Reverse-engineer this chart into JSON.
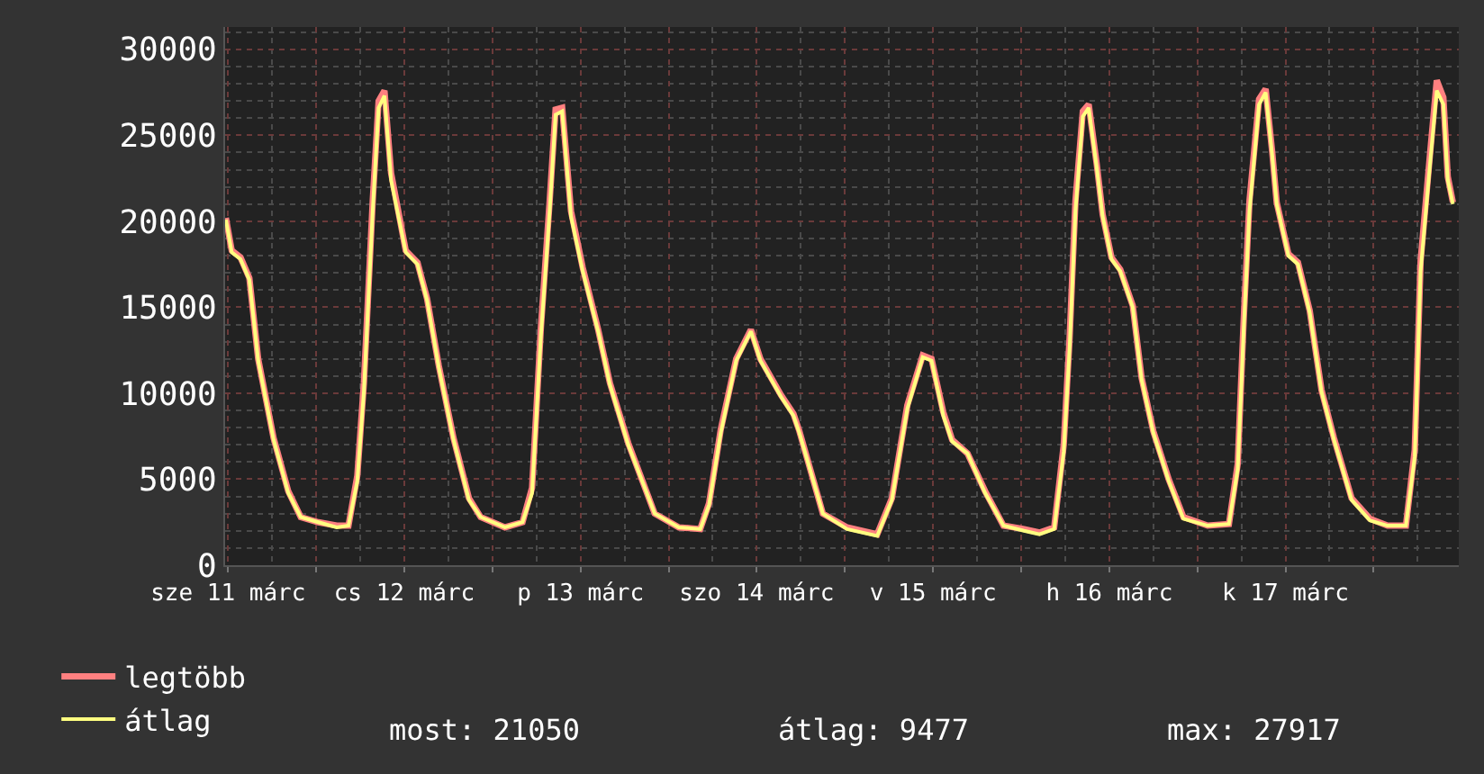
{
  "chart_data": {
    "type": "line",
    "x": [
      "--03-11T11:42",
      "--03-11T12:30",
      "--03-11T13:42",
      "--03-11T14:54",
      "--03-11T16:06",
      "--03-11T18:12",
      "--03-11T20:12",
      "--03-11T21:54",
      "--03-12T00:18",
      "--03-12T02:48",
      "--03-12T04:24",
      "--03-12T05:36",
      "--03-12T06:30",
      "--03-12T07:42",
      "--03-12T08:30",
      "--03-12T09:18",
      "--03-12T10:12",
      "--03-12T12:12",
      "--03-12T13:48",
      "--03-12T15:06",
      "--03-12T16:42",
      "--03-12T18:42",
      "--03-12T20:48",
      "--03-12T22:24",
      "--03-13T01:42",
      "--03-13T04:06",
      "--03-13T05:24",
      "--03-13T06:36",
      "--03-13T07:48",
      "--03-13T08:36",
      "--03-13T09:30",
      "--03-13T10:42",
      "--03-13T12:18",
      "--03-13T14:24",
      "--03-13T16:00",
      "--03-13T18:30",
      "--03-13T22:06",
      "--03-14T01:24",
      "--03-14T04:18",
      "--03-14T05:30",
      "--03-14T07:06",
      "--03-14T09:12",
      "--03-14T11:12",
      "--03-14T12:30",
      "--03-14T15:18",
      "--03-14T17:00",
      "--03-14T17:48",
      "--03-14T21:00",
      "--03-15T00:18",
      "--03-15T04:24",
      "--03-15T06:24",
      "--03-15T08:30",
      "--03-15T10:36",
      "--03-15T11:48",
      "--03-15T13:24",
      "--03-15T14:36",
      "--03-15T16:42",
      "--03-15T19:06",
      "--03-15T21:36",
      "--03-16T00:24",
      "--03-16T02:30",
      "--03-16T04:30",
      "--03-16T05:48",
      "--03-16T06:36",
      "--03-16T07:24",
      "--03-16T08:24",
      "--03-16T09:12",
      "--03-16T10:18",
      "--03-16T11:06",
      "--03-16T12:18",
      "--03-16T13:30",
      "--03-16T15:12",
      "--03-16T16:24",
      "--03-16T18:00",
      "--03-16T20:06",
      "--03-16T22:06",
      "--03-17T01:24",
      "--03-17T04:18",
      "--03-17T05:30",
      "--03-17T06:18",
      "--03-17T07:06",
      "--03-17T08:24",
      "--03-17T09:18",
      "--03-17T10:12",
      "--03-17T10:48",
      "--03-17T12:24",
      "--03-17T13:42",
      "--03-17T15:18",
      "--03-17T16:54",
      "--03-17T18:36",
      "--03-17T21:00",
      "--03-17T23:30",
      "--03-18T01:54",
      "--03-18T04:24",
      "--03-18T05:36",
      "--03-18T06:24",
      "--03-18T07:42",
      "--03-18T08:36",
      "--03-18T09:30",
      "--03-18T10:06",
      "--03-18T10:48"
    ],
    "series": [
      {
        "name": "legtöbb",
        "color": "#ff8080",
        "values": [
          20200,
          18300,
          17900,
          16700,
          12000,
          7400,
          4300,
          2800,
          2500,
          2300,
          2300,
          5200,
          10600,
          21200,
          27000,
          27600,
          22800,
          18300,
          17600,
          15500,
          11600,
          7400,
          3900,
          2800,
          2200,
          2500,
          4500,
          13800,
          21200,
          26500,
          26600,
          20600,
          17300,
          13700,
          10600,
          7100,
          3000,
          2200,
          2100,
          3600,
          7900,
          12000,
          13700,
          12000,
          9900,
          8800,
          7800,
          3000,
          2200,
          1800,
          3900,
          9300,
          12200,
          12000,
          8900,
          7300,
          6500,
          4300,
          2300,
          2100,
          1900,
          2200,
          7000,
          13200,
          21200,
          26400,
          26800,
          23300,
          20400,
          17900,
          17200,
          15100,
          10900,
          7800,
          5000,
          2800,
          2300,
          2400,
          5900,
          14200,
          21200,
          27100,
          27700,
          24000,
          21100,
          18100,
          17600,
          14800,
          10200,
          7400,
          3900,
          2700,
          2300,
          2300,
          6700,
          17700,
          24000,
          28200,
          27200,
          22600,
          21100
        ]
      },
      {
        "name": "átlag",
        "color": "#ffff80",
        "values": [
          20100,
          18200,
          17800,
          16600,
          11900,
          7300,
          4200,
          2800,
          2500,
          2200,
          2300,
          4900,
          10100,
          20600,
          26600,
          27300,
          22400,
          18200,
          17500,
          15400,
          11500,
          7300,
          3800,
          2800,
          2200,
          2500,
          4200,
          13300,
          20600,
          26200,
          26400,
          20300,
          17100,
          13600,
          10500,
          7000,
          3000,
          2200,
          2100,
          3500,
          7700,
          11900,
          13600,
          11900,
          9800,
          8700,
          7700,
          3000,
          2100,
          1700,
          3800,
          9100,
          12100,
          11900,
          8700,
          7200,
          6500,
          4200,
          2300,
          2000,
          1800,
          2100,
          6600,
          12600,
          20600,
          26100,
          26600,
          23100,
          20300,
          17800,
          17100,
          15000,
          10800,
          7700,
          4900,
          2700,
          2300,
          2400,
          5600,
          13600,
          20600,
          26800,
          27500,
          23800,
          21000,
          18000,
          17500,
          14700,
          10100,
          7300,
          3800,
          2600,
          2300,
          2300,
          6300,
          17100,
          23400,
          27600,
          26800,
          22400,
          21000
        ]
      }
    ],
    "xlim": [
      "--03-11T11:36",
      "--03-18T11:36"
    ],
    "xticks": [
      {
        "value": "--03-11T12:00",
        "label": "sze 11 márc"
      },
      {
        "value": "--03-12T00:00",
        "label": null
      },
      {
        "value": "--03-12T12:00",
        "label": "cs 12 márc"
      },
      {
        "value": "--03-13T00:00",
        "label": null
      },
      {
        "value": "--03-13T12:00",
        "label": "p 13 márc"
      },
      {
        "value": "--03-14T00:00",
        "label": null
      },
      {
        "value": "--03-14T12:00",
        "label": "szo 14 márc"
      },
      {
        "value": "--03-15T00:00",
        "label": null
      },
      {
        "value": "--03-15T12:00",
        "label": "v 15 márc"
      },
      {
        "value": "--03-16T00:00",
        "label": null
      },
      {
        "value": "--03-16T12:00",
        "label": "h 16 márc"
      },
      {
        "value": "--03-17T00:00",
        "label": null
      },
      {
        "value": "--03-17T12:00",
        "label": "k 17 márc"
      },
      {
        "value": "--03-18T00:00",
        "label": null
      }
    ],
    "ylim": [
      0,
      31300
    ],
    "yticks": [
      0,
      5000,
      10000,
      15000,
      20000,
      25000,
      30000
    ],
    "grid": true,
    "legend": "bottom left",
    "annotations": [
      "most: 21050",
      "átlag: 9477",
      "max: 27917"
    ]
  }
}
